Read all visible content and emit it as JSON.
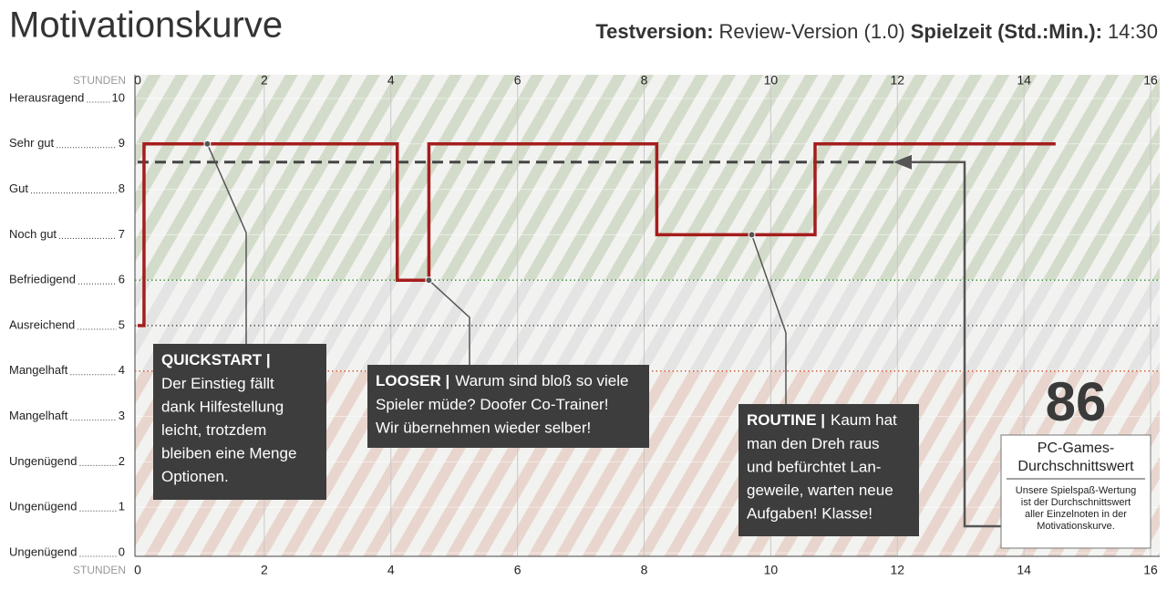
{
  "header": {
    "title": "Motivationskurve",
    "version_label": "Testversion:",
    "version": "Review-Version (1.0)",
    "playtime_label": "Spielzeit (Std.:Min.):",
    "playtime": "14:30"
  },
  "chart_data": {
    "type": "line",
    "x_axis_label": "STUNDEN",
    "x": [
      0,
      0.1,
      0.1,
      4.1,
      4.1,
      4.6,
      4.6,
      8.2,
      8.2,
      10.7,
      10.7,
      14.5
    ],
    "series": [
      {
        "color": "#a51d1d",
        "values": [
          5,
          5,
          9,
          9,
          6,
          6,
          9,
          9,
          7,
          7,
          9,
          9
        ]
      }
    ],
    "xlim": [
      0,
      16
    ],
    "xticks": [
      0,
      2,
      4,
      6,
      8,
      10,
      12,
      14,
      16
    ],
    "ylim": [
      0,
      10
    ],
    "yticks": [
      0,
      1,
      2,
      3,
      4,
      5,
      6,
      7,
      8,
      9,
      10
    ],
    "ytick_names": [
      "Ungenügend",
      "Ungenügend",
      "Ungenügend",
      "Mangelhaft",
      "Mangelhaft",
      "Ausreichend",
      "Befriedigend",
      "Noch gut",
      "Gut",
      "Sehr gut",
      "Herausragend"
    ],
    "grid": true,
    "zones": [
      {
        "from": 6,
        "to": 10,
        "color": "#d3dcca"
      },
      {
        "from": 4,
        "to": 6,
        "color": "#e4e4e4"
      },
      {
        "from": 0,
        "to": 4,
        "color": "#e8d5cd"
      }
    ],
    "reference_lines": [
      {
        "value": 6,
        "color": "#2e8b2e"
      },
      {
        "value": 5,
        "color": "#333333"
      },
      {
        "value": 4,
        "color": "#d0502a"
      }
    ],
    "average_line": {
      "value": 8.6,
      "color": "#444444"
    },
    "annotations": [
      {
        "heading": "QUICKSTART |",
        "lines": [
          "Der Einstieg fällt",
          "dank Hilfestellung",
          "leicht, trotzdem",
          "bleiben eine Menge",
          "Optionen."
        ],
        "x": 1.1,
        "y": 9
      },
      {
        "heading": "LOOSER |",
        "lines": [
          "Warum sind bloß so viele",
          "Spieler müde? Doofer Co-Trainer!",
          "Wir übernehmen wieder selber!"
        ],
        "x": 4.6,
        "y": 6
      },
      {
        "heading": "ROUTINE |",
        "lines": [
          "Kaum hat",
          "man den Dreh raus",
          "und befürchtet Lan-",
          "geweile, warten neue",
          "Aufgaben! Klasse!"
        ],
        "x": 9.7,
        "y": 7
      }
    ],
    "score": {
      "value": 86,
      "title_lines": [
        "PC-Games-",
        "Durchschnittswert"
      ],
      "note_lines": [
        "Unsere Spielspaß-Wertung",
        "ist der Durchschnittswert",
        "aller Einzelnoten in der",
        "Motivationskurve."
      ]
    }
  }
}
